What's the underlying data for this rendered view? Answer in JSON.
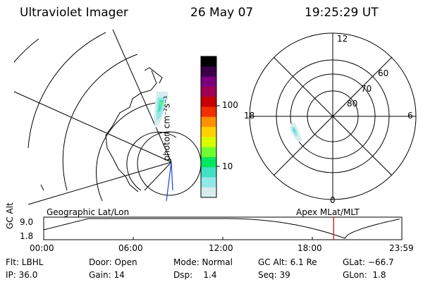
{
  "header": {
    "title": "Ultraviolet Imager",
    "date": "26 May 07",
    "time": "19:25:29 UT"
  },
  "colorbar": {
    "label": "photon cm⁻²s⁻¹",
    "ticks": [
      "100",
      "10"
    ],
    "colors": [
      "#000000",
      "#3a0048",
      "#7a0080",
      "#a00050",
      "#c80000",
      "#f03000",
      "#ff9000",
      "#ffd000",
      "#d8ff00",
      "#70ff30",
      "#00e860",
      "#40e0c0",
      "#90e8e8",
      "#d8ecec"
    ]
  },
  "polar": {
    "mlt_labels": [
      "12",
      "18",
      "6",
      "0"
    ],
    "lat_labels": [
      "60",
      "70",
      "80"
    ]
  },
  "strip": {
    "left_caption": "Geographic Lat/Lon",
    "right_caption": "Apex MLat/MLT",
    "ylabel": "GC Alt",
    "yticks": [
      "9.0",
      "1.8"
    ],
    "xticks": [
      "00:00",
      "06:00",
      "12:00",
      "18:00",
      "23:59"
    ],
    "marker_time": "19:25"
  },
  "footer": {
    "row1": [
      "Flt: LBHL",
      "Door: Open",
      "Mode: Normal",
      "GC Alt: 6.1 Re",
      "GLat: −66.7"
    ],
    "row2": [
      "IP: 36.0",
      "Gain: 14",
      "Dsp:    1.4",
      "Seq: 39",
      "GLon:  1.8"
    ]
  }
}
